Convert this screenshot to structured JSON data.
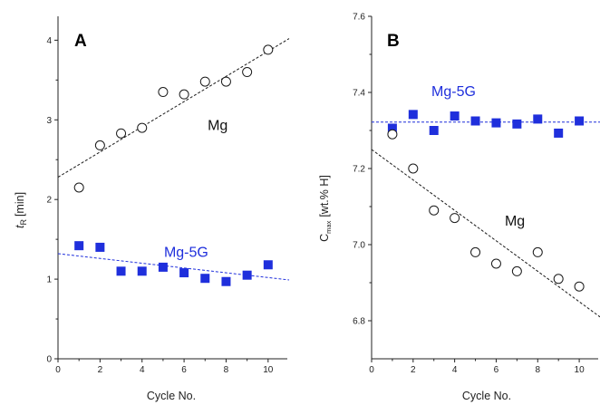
{
  "chart_data": [
    {
      "panel": "A",
      "type": "scatter",
      "panel_label": "A",
      "xlabel": "Cycle No.",
      "ylabel_main": "t",
      "ylabel_sub": "R",
      "ylabel_unit": "[min]",
      "xlim": [
        0,
        11
      ],
      "ylim": [
        0,
        4.3
      ],
      "xticks": [
        0,
        2,
        4,
        6,
        8,
        10
      ],
      "yticks": [
        0,
        1,
        2,
        3,
        4
      ],
      "series": [
        {
          "name": "Mg",
          "marker": "open-circle",
          "color": "#1a1a1a",
          "x": [
            1,
            2,
            3,
            4,
            5,
            6,
            7,
            8,
            9,
            10
          ],
          "y": [
            2.15,
            2.68,
            2.83,
            2.9,
            3.35,
            3.32,
            3.48,
            3.48,
            3.6,
            3.88
          ],
          "trend": [
            [
              0,
              2.28
            ],
            [
              11,
              4.02
            ]
          ]
        },
        {
          "name": "Mg-5G",
          "marker": "filled-square",
          "color": "#1f2fdc",
          "x": [
            1,
            2,
            3,
            4,
            5,
            6,
            7,
            8,
            9,
            10
          ],
          "y": [
            1.42,
            1.4,
            1.1,
            1.1,
            1.15,
            1.08,
            1.01,
            0.97,
            1.05,
            1.18
          ],
          "trend": [
            [
              0,
              1.32
            ],
            [
              11,
              0.99
            ]
          ]
        }
      ],
      "annotations": [
        {
          "text": "Mg",
          "x": 7.6,
          "y": 2.87,
          "color": "#111111"
        },
        {
          "text": "Mg-5G",
          "x": 6.1,
          "y": 1.28,
          "color": "#1f2fdc"
        }
      ]
    },
    {
      "panel": "B",
      "type": "scatter",
      "panel_label": "B",
      "xlabel": "Cycle No.",
      "ylabel_main": "C",
      "ylabel_sub": "max",
      "ylabel_unit": "[wt.% H]",
      "xlim": [
        0,
        11
      ],
      "ylim": [
        6.7,
        7.6
      ],
      "xticks": [
        0,
        2,
        4,
        6,
        8,
        10
      ],
      "yticks": [
        6.8,
        7.0,
        7.2,
        7.4,
        7.6
      ],
      "ytick_labels": [
        "6.8",
        "7.0",
        "7.2",
        "7.4",
        "7.6"
      ],
      "series": [
        {
          "name": "Mg-5G",
          "marker": "filled-square",
          "color": "#1f2fdc",
          "x": [
            1,
            2,
            3,
            4,
            5,
            6,
            7,
            8,
            9,
            10
          ],
          "y": [
            7.306,
            7.342,
            7.3,
            7.338,
            7.325,
            7.32,
            7.317,
            7.33,
            7.293,
            7.325
          ],
          "trend": [
            [
              0,
              7.322
            ],
            [
              11,
              7.322
            ]
          ]
        },
        {
          "name": "Mg",
          "marker": "open-circle",
          "color": "#1a1a1a",
          "x": [
            1,
            2,
            3,
            4,
            5,
            6,
            7,
            8,
            9,
            10
          ],
          "y": [
            7.29,
            7.2,
            7.09,
            7.07,
            6.98,
            6.95,
            6.93,
            6.98,
            6.91,
            6.89
          ],
          "trend": [
            [
              0,
              7.25
            ],
            [
              11,
              6.81
            ]
          ]
        }
      ],
      "annotations": [
        {
          "text": "Mg-5G",
          "x": 3.95,
          "y": 7.39,
          "color": "#1f2fdc"
        },
        {
          "text": "Mg",
          "x": 6.9,
          "y": 7.05,
          "color": "#111111"
        }
      ]
    }
  ]
}
